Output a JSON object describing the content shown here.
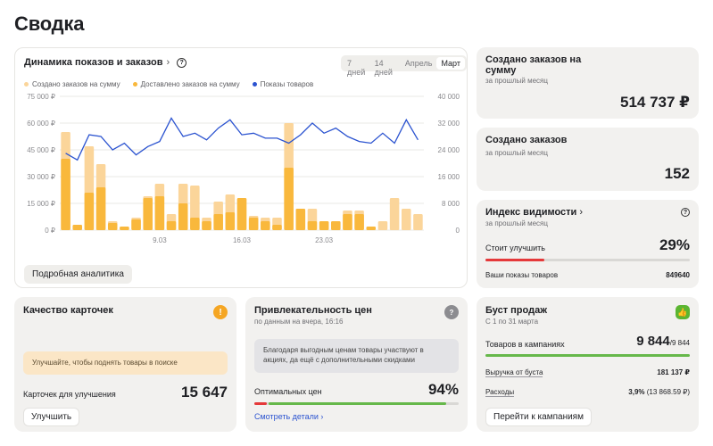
{
  "page": {
    "title": "Сводка"
  },
  "dynamics": {
    "title": "Динамика показов и заказов",
    "periods": [
      "7 дней",
      "14 дней",
      "Апрель",
      "Март"
    ],
    "active_period": "Март",
    "legend": [
      "Создано заказов на сумму",
      "Доставлено заказов на сумму",
      "Показы товаров"
    ],
    "details_button": "Подробная аналитика"
  },
  "chart_data": {
    "type": "bar",
    "categories": [
      "1.03",
      "2.03",
      "3.03",
      "4.03",
      "5.03",
      "6.03",
      "7.03",
      "8.03",
      "9.03",
      "10.03",
      "11.03",
      "12.03",
      "13.03",
      "14.03",
      "15.03",
      "16.03",
      "17.03",
      "18.03",
      "19.03",
      "20.03",
      "21.03",
      "22.03",
      "23.03",
      "24.03",
      "25.03",
      "26.03",
      "27.03",
      "28.03",
      "29.03",
      "30.03",
      "31.03"
    ],
    "x_tick_labels": [
      "9.03",
      "16.03",
      "23.03"
    ],
    "y_left_ticks": [
      "75 000 ₽",
      "60 000 ₽",
      "45 000 ₽",
      "30 000 ₽",
      "15 000 ₽",
      "0 ₽"
    ],
    "y_right_ticks": [
      "40 000",
      "32 000",
      "24 000",
      "16 000",
      "8 000",
      "0"
    ],
    "ylim_left": [
      0,
      75000
    ],
    "ylim_right": [
      0,
      40000
    ],
    "series": [
      {
        "name": "Создано заказов на сумму",
        "color": "#fbd59a",
        "values": [
          55000,
          3000,
          47000,
          37000,
          5000,
          2000,
          7000,
          19000,
          26000,
          9000,
          26000,
          25000,
          7000,
          16000,
          20000,
          18000,
          8000,
          7000,
          7000,
          60000,
          12000,
          12000,
          5000,
          5000,
          11000,
          11000,
          2000,
          5000,
          18000,
          12000,
          9000
        ]
      },
      {
        "name": "Доставлено заказов на сумму",
        "color": "#f9b83c",
        "values": [
          40000,
          3000,
          21000,
          24000,
          4000,
          2000,
          6000,
          18000,
          19000,
          5000,
          15000,
          7000,
          5000,
          9000,
          10000,
          18000,
          7000,
          5000,
          3000,
          35000,
          12000,
          5000,
          5000,
          5000,
          9000,
          9000,
          2000,
          0,
          0,
          0,
          0
        ]
      },
      {
        "name": "Показы товаров",
        "color": "#2b53d0",
        "values": [
          23000,
          21000,
          28500,
          28000,
          24000,
          26000,
          22500,
          25000,
          26500,
          33500,
          28000,
          29000,
          27000,
          30500,
          33000,
          28500,
          29000,
          27500,
          27500,
          26000,
          28500,
          32000,
          29000,
          30500,
          28000,
          26500,
          26000,
          29000,
          26000,
          33000,
          27000
        ]
      }
    ]
  },
  "orders_sum": {
    "title": "Создано заказов на сумму",
    "subtitle": "за прошлый месяц",
    "value": "514 737 ₽"
  },
  "orders_count": {
    "title": "Создано заказов",
    "subtitle": "за прошлый месяц",
    "value": "152"
  },
  "visibility": {
    "title": "Индекс видимости",
    "subtitle": "за прошлый месяц",
    "status": "Стоит улучшить",
    "percent": "29%",
    "progress": 0.29,
    "views_label": "Ваши показы товаров",
    "views_value": "849640"
  },
  "card_quality": {
    "title": "Качество карточек",
    "notice": "Улучшайте, чтобы поднять товары в поиске",
    "label": "Карточек для улучшения",
    "value": "15 647",
    "button": "Улучшить"
  },
  "price_appeal": {
    "title": "Привлекательность цен",
    "subtitle": "по данным на вчера, 16:16",
    "notice": "Благодаря выгодным ценам товары участвуют в акциях, да ещё с дополнительными скидками",
    "label": "Оптимальных цен",
    "value": "94%",
    "progress": 0.94,
    "link": "Смотреть детали"
  },
  "boost": {
    "title": "Буст продаж",
    "subtitle": "С 1 по 31 марта",
    "campaigns_label": "Товаров в кампаниях",
    "campaigns_value": "9 844",
    "campaigns_total": "/9 844",
    "revenue_label": "Выручка от буста",
    "revenue_value": "181 137 ₽",
    "expenses_label": "Расходы",
    "expenses_value": "3,9%",
    "expenses_detail": "(13 868.59 ₽)",
    "button": "Перейти к кампаниям"
  },
  "colors": {
    "created": "#fbd59a",
    "delivered": "#f9b83c",
    "views": "#2b53d0",
    "warning": "#f5a623",
    "success": "#5bb531",
    "progress_red": "#e5393a",
    "progress_green": "#66b84a"
  }
}
